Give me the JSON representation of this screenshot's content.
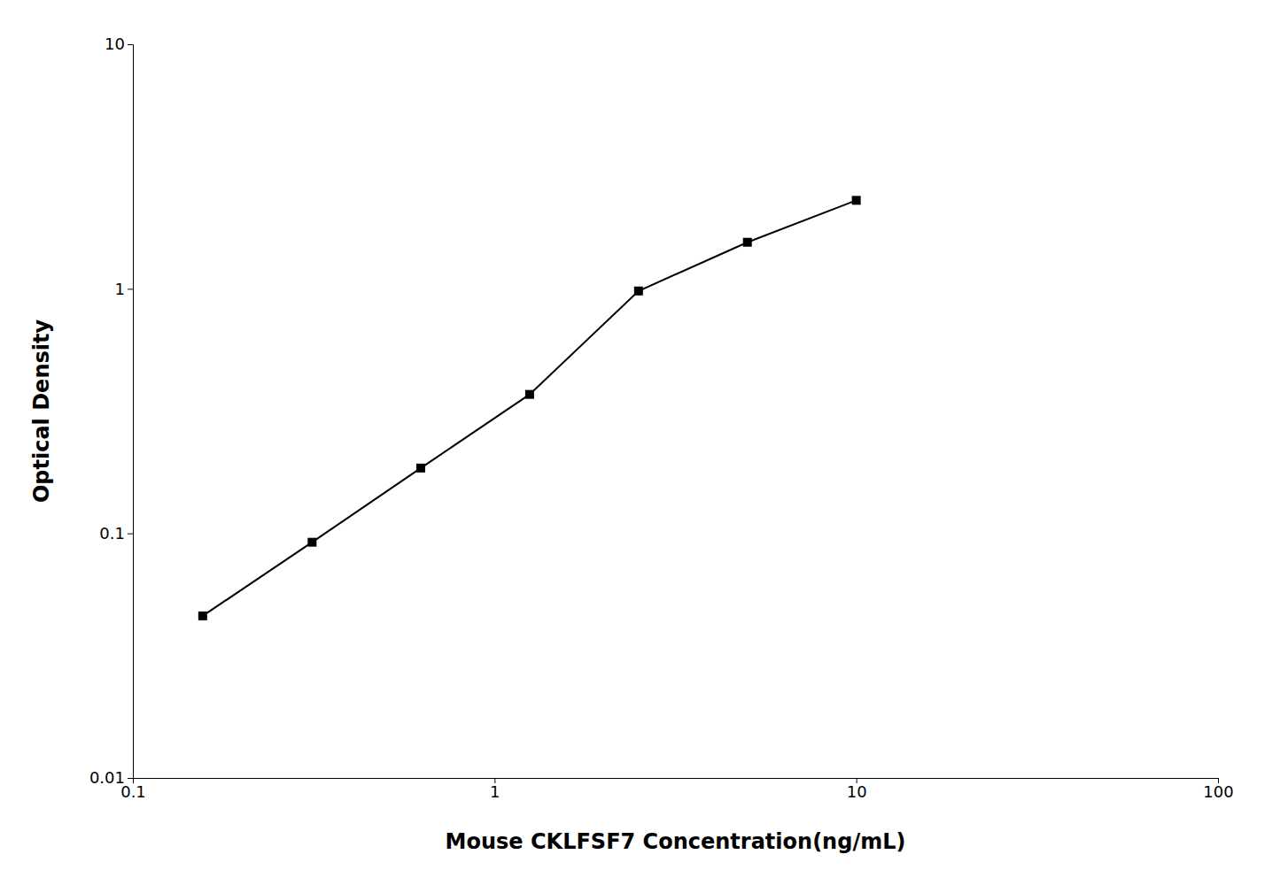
{
  "chart_data": {
    "type": "line",
    "x": [
      0.156,
      0.313,
      0.625,
      1.25,
      2.5,
      5.0,
      10.0
    ],
    "values": [
      0.046,
      0.092,
      0.185,
      0.37,
      0.98,
      1.55,
      2.3
    ],
    "xlabel": "Mouse CKLFSF7 Concentration(ng/mL)",
    "ylabel": "Optical Density",
    "xlim": [
      0.1,
      100
    ],
    "ylim": [
      0.01,
      10
    ],
    "xticks": [
      0.1,
      1,
      10,
      100
    ],
    "yticks": [
      0.01,
      0.1,
      1,
      10
    ],
    "log": true,
    "color": "#000000",
    "marker": "square",
    "grid": false
  }
}
